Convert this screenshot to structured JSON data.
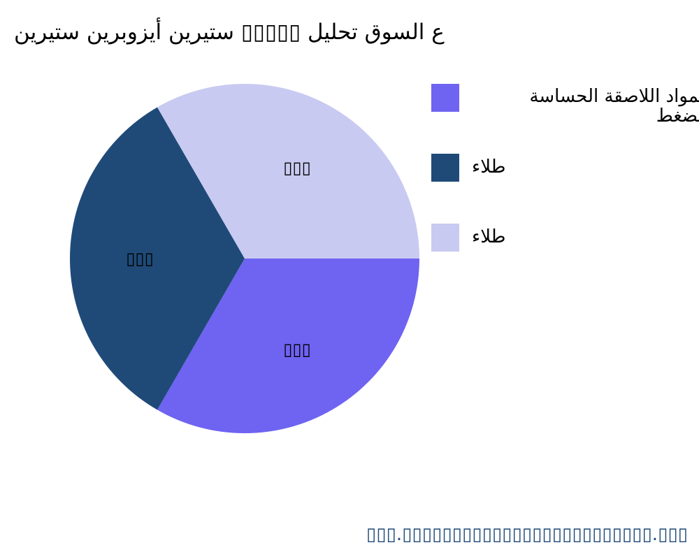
{
  "chart_data": {
    "type": "pie",
    "title": "ع السوق تحليل ▯▯▯▯▯ ستيرين أيزوبرين ستيرين",
    "categories": [
      "المواد اللاصقة الحساسة للضغط",
      "طلاء",
      "طلاء"
    ],
    "values": [
      33.33,
      33.33,
      33.33
    ],
    "data_labels": [
      "▯▯▯",
      "▯▯▯",
      "▯▯▯"
    ],
    "colors": [
      "#6f63f2",
      "#1f4a78",
      "#c9caf1"
    ],
    "legend_position": "right",
    "start_angle_deg": 0,
    "direction": "clockwise"
  },
  "footer": "▯▯▯.▯▯▯▯▯▯▯▯▯▯▯▯▯▯▯▯▯▯▯▯▯▯▯▯▯.▯▯▯"
}
